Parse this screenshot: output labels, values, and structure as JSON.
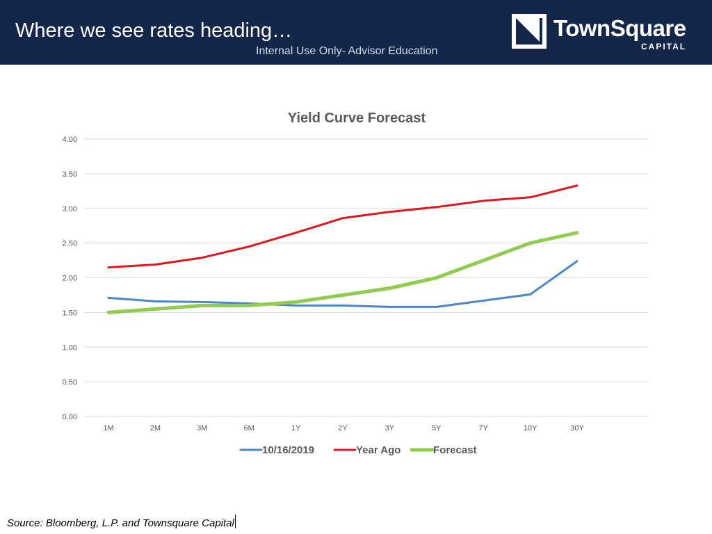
{
  "header": {
    "title": "Where we see rates heading…",
    "subtitle": "Internal Use Only- Advisor Education"
  },
  "logo": {
    "name": "TownSquare",
    "tagline": "CAPITAL"
  },
  "footer": {
    "source": "Source: Bloomberg, L.P. and Townsquare Capital"
  },
  "colors": {
    "banner": "#14264a",
    "series_10_16_2019": "#4a86c8",
    "series_year_ago": "#e0161c",
    "series_forecast": "#8fcc4f"
  },
  "chart_data": {
    "type": "line",
    "title": "Yield Curve Forecast",
    "xlabel": "",
    "ylabel": "",
    "categories": [
      "1M",
      "2M",
      "3M",
      "6M",
      "1Y",
      "2Y",
      "3Y",
      "5Y",
      "7Y",
      "10Y",
      "30Y"
    ],
    "ylim": [
      0,
      4
    ],
    "yticks": [
      "0.00",
      "0.50",
      "1.00",
      "1.50",
      "2.00",
      "2.50",
      "3.00",
      "3.50",
      "4.00"
    ],
    "grid": "horizontal",
    "legend": "bottom",
    "series": [
      {
        "name": "10/16/2019",
        "color": "#4a86c8",
        "values": [
          1.71,
          1.66,
          1.65,
          1.63,
          1.6,
          1.6,
          1.58,
          1.58,
          1.67,
          1.76,
          2.24
        ]
      },
      {
        "name": "Year Ago",
        "color": "#e0161c",
        "values": [
          2.15,
          2.19,
          2.29,
          2.45,
          2.65,
          2.86,
          2.95,
          3.02,
          3.11,
          3.16,
          3.33
        ]
      },
      {
        "name": "Forecast",
        "color": "#8fcc4f",
        "values": [
          1.5,
          1.55,
          1.6,
          1.6,
          1.65,
          1.75,
          1.85,
          2.0,
          2.25,
          2.5,
          2.65
        ]
      }
    ]
  }
}
